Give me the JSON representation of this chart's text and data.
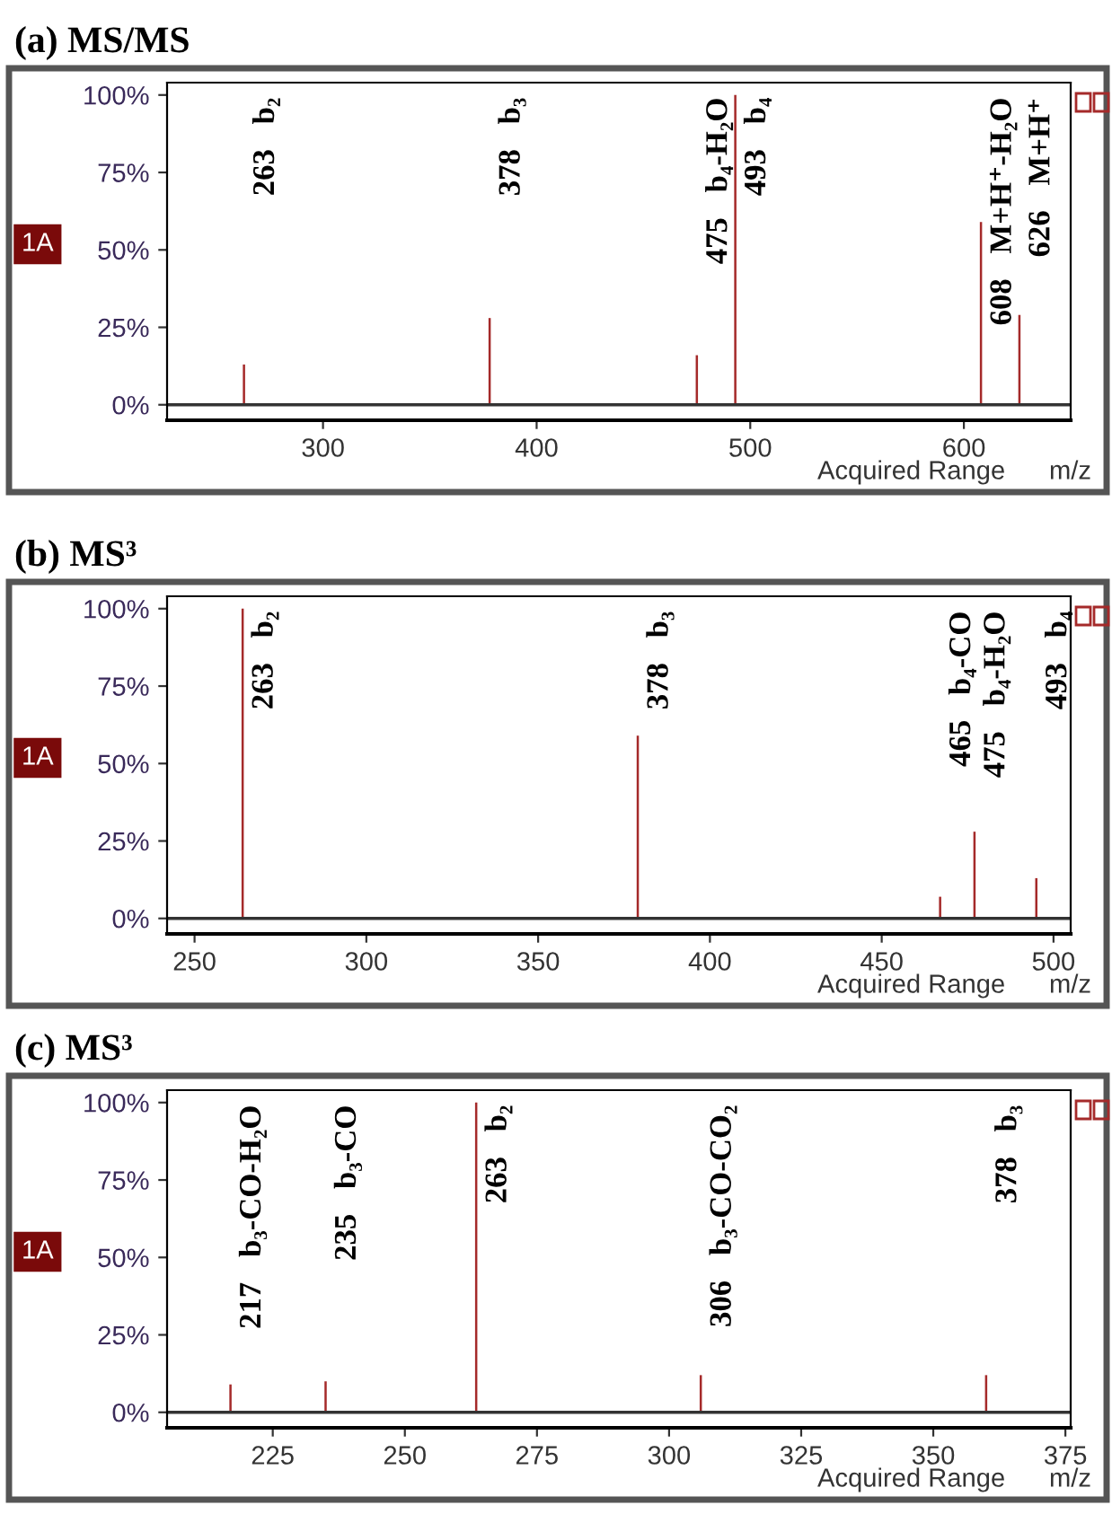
{
  "chart_data": [
    {
      "type": "bar",
      "title": "(a) MS/MS",
      "x": [
        263,
        378,
        475,
        493,
        608,
        626
      ],
      "values": [
        13,
        28,
        16,
        100,
        59,
        29
      ],
      "color": "#a52a2a",
      "xlim": [
        227,
        650
      ],
      "xticks": [
        300,
        400,
        500,
        600
      ],
      "ylim": [
        -5,
        104
      ],
      "yticks": [
        {
          "value": 0,
          "label": "0%"
        },
        {
          "value": 25,
          "label": "25%"
        },
        {
          "value": 50,
          "label": "50%"
        },
        {
          "value": 75,
          "label": "75%"
        },
        {
          "value": 100,
          "label": "100%"
        }
      ],
      "ref_lines": [
        {
          "axis": "y",
          "value": 0
        }
      ],
      "annotations": [
        "263",
        "b₂",
        "378",
        "b₃",
        "475",
        "b₄-H₂O",
        "493",
        "b₄",
        "608",
        "M+H⁺-H₂O",
        "626",
        "M+H⁺",
        "1A",
        "Acquired Range",
        "m/z"
      ]
    },
    {
      "type": "bar",
      "title": "(b) MS³",
      "x": [
        264,
        379,
        467,
        477,
        495
      ],
      "values": [
        100,
        59,
        7,
        28,
        13
      ],
      "color": "#a52a2a",
      "xlim": [
        242,
        505
      ],
      "xticks": [
        250,
        300,
        350,
        400,
        450,
        500
      ],
      "ylim": [
        -5,
        104
      ],
      "yticks": [
        {
          "value": 0,
          "label": "0%"
        },
        {
          "value": 25,
          "label": "25%"
        },
        {
          "value": 50,
          "label": "50%"
        },
        {
          "value": 75,
          "label": "75%"
        },
        {
          "value": 100,
          "label": "100%"
        }
      ],
      "ref_lines": [
        {
          "axis": "y",
          "value": 0
        }
      ],
      "annotations": [
        "263",
        "b₂",
        "378",
        "b₃",
        "465",
        "b₄-CO",
        "475",
        "b₄-H₂O",
        "493",
        "b₄",
        "1A",
        "Acquired Range",
        "m/z"
      ]
    },
    {
      "type": "bar",
      "title": "(c) MS³",
      "x": [
        217,
        235,
        263.5,
        306,
        360
      ],
      "values": [
        9,
        10,
        100,
        12,
        12
      ],
      "color": "#a52a2a",
      "xlim": [
        205,
        376
      ],
      "xticks": [
        225,
        250,
        275,
        300,
        325,
        350,
        375
      ],
      "ylim": [
        -5,
        104
      ],
      "yticks": [
        {
          "value": 0,
          "label": "0%"
        },
        {
          "value": 25,
          "label": "25%"
        },
        {
          "value": 50,
          "label": "50%"
        },
        {
          "value": 75,
          "label": "75%"
        },
        {
          "value": 100,
          "label": "100%"
        }
      ],
      "ref_lines": [
        {
          "axis": "y",
          "value": 0
        }
      ],
      "annotations": [
        "217",
        "b₃-CO-H₂O",
        "235",
        "b₃-CO",
        "263",
        "b₂",
        "306",
        "b₃-CO-CO₂",
        "378",
        "b₃",
        "1A",
        "Acquired Range",
        "m/z"
      ]
    }
  ]
}
